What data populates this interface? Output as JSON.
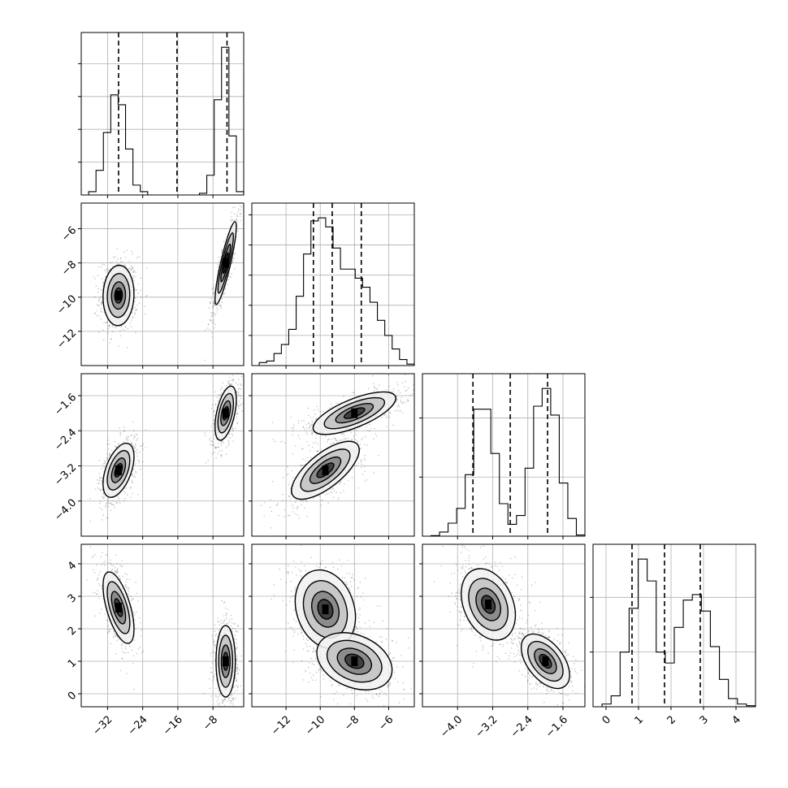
{
  "chart_data": {
    "type": "corner",
    "n_params": 4,
    "grid": true,
    "params": [
      {
        "range": [
          -38,
          -1
        ],
        "ticks": [
          -32,
          -24,
          -16,
          -8
        ],
        "tick_labels": [
          "−32",
          "−24",
          "−16",
          "−8"
        ],
        "quantiles": [
          -29.5,
          -16.2,
          -4.8
        ],
        "hist_y_ticks": [
          0.2,
          0.4,
          0.6,
          0.8
        ],
        "hist": [
          0.0,
          0.02,
          0.15,
          0.38,
          0.61,
          0.55,
          0.28,
          0.06,
          0.02,
          0.0,
          0.0,
          0.0,
          0.0,
          0.0,
          0.0,
          0.0,
          0.01,
          0.12,
          0.58,
          0.9,
          0.36,
          0.02
        ]
      },
      {
        "range": [
          -14,
          -4.5
        ],
        "ticks": [
          -12,
          -10,
          -8,
          -6
        ],
        "tick_labels": [
          "−12",
          "−10",
          "−8",
          "−6"
        ],
        "quantiles": [
          -10.4,
          -9.3,
          -7.6
        ],
        "hist_y_ticks": [
          0.1,
          0.2,
          0.3,
          0.4,
          0.5
        ],
        "hist": [
          0.0,
          0.01,
          0.015,
          0.04,
          0.07,
          0.12,
          0.23,
          0.37,
          0.48,
          0.49,
          0.46,
          0.39,
          0.32,
          0.32,
          0.29,
          0.26,
          0.21,
          0.15,
          0.1,
          0.055,
          0.02,
          0.005
        ]
      },
      {
        "range": [
          -4.8,
          -1.1
        ],
        "ticks": [
          -4.0,
          -3.2,
          -2.4,
          -1.6
        ],
        "tick_labels": [
          "−4.0",
          "−3.2",
          "−2.4",
          "−1.6"
        ],
        "quantiles": [
          -3.65,
          -2.8,
          -1.95
        ],
        "hist_y_ticks": [
          1,
          2
        ],
        "hist": [
          0.0,
          0.01,
          0.07,
          0.22,
          0.47,
          1.04,
          2.15,
          2.15,
          1.4,
          0.55,
          0.2,
          0.35,
          1.15,
          2.2,
          2.5,
          2.05,
          0.9,
          0.3,
          0.02
        ]
      },
      {
        "range": [
          -0.4,
          4.6
        ],
        "ticks": [
          0,
          1,
          2,
          3,
          4
        ],
        "tick_labels": [
          "0",
          "1",
          "2",
          "3",
          "4"
        ],
        "quantiles": [
          0.8,
          1.8,
          2.9
        ],
        "hist_y_ticks": [
          0.2,
          0.4
        ],
        "hist": [
          0.0,
          0.01,
          0.04,
          0.2,
          0.36,
          0.54,
          0.46,
          0.2,
          0.16,
          0.29,
          0.39,
          0.41,
          0.35,
          0.22,
          0.1,
          0.03,
          0.01,
          0.004
        ]
      }
    ],
    "panels_2d": [
      {
        "x": 0,
        "y": 1,
        "blobs": [
          {
            "cx": -29.5,
            "cy": -9.9,
            "sx": 1.6,
            "sy": 0.8,
            "rho": 0.05,
            "w": 1
          },
          {
            "cx": -5.1,
            "cy": -8.0,
            "sx": 1.1,
            "sy": 1.1,
            "rho": 0.88,
            "w": 1
          }
        ]
      },
      {
        "x": 0,
        "y": 2,
        "blobs": [
          {
            "cx": -29.5,
            "cy": -3.3,
            "sx": 1.6,
            "sy": 0.28,
            "rho": 0.5,
            "w": 1
          },
          {
            "cx": -5.1,
            "cy": -2.0,
            "sx": 1.1,
            "sy": 0.28,
            "rho": 0.5,
            "w": 1
          }
        ]
      },
      {
        "x": 0,
        "y": 3,
        "blobs": [
          {
            "cx": -29.5,
            "cy": 2.65,
            "sx": 1.6,
            "sy": 0.5,
            "rho": -0.6,
            "w": 1
          },
          {
            "cx": -5.1,
            "cy": 1.0,
            "sx": 1.0,
            "sy": 0.5,
            "rho": 0.0,
            "w": 1
          }
        ]
      },
      {
        "x": 1,
        "y": 2,
        "blobs": [
          {
            "cx": -9.7,
            "cy": -3.3,
            "sx": 0.9,
            "sy": 0.3,
            "rho": 0.7,
            "w": 1
          },
          {
            "cx": -8.0,
            "cy": -2.0,
            "sx": 1.1,
            "sy": 0.22,
            "rho": 0.7,
            "w": 1
          }
        ]
      },
      {
        "x": 1,
        "y": 3,
        "blobs": [
          {
            "cx": -9.7,
            "cy": 2.6,
            "sx": 0.8,
            "sy": 0.55,
            "rho": -0.2,
            "w": 1
          },
          {
            "cx": -8.0,
            "cy": 1.0,
            "sx": 1.0,
            "sy": 0.4,
            "rho": -0.3,
            "w": 1
          }
        ]
      },
      {
        "x": 2,
        "y": 3,
        "blobs": [
          {
            "cx": -3.3,
            "cy": 2.75,
            "sx": 0.28,
            "sy": 0.5,
            "rho": -0.3,
            "w": 1
          },
          {
            "cx": -2.0,
            "cy": 1.0,
            "sx": 0.25,
            "sy": 0.38,
            "rho": -0.5,
            "w": 1
          }
        ]
      }
    ]
  }
}
